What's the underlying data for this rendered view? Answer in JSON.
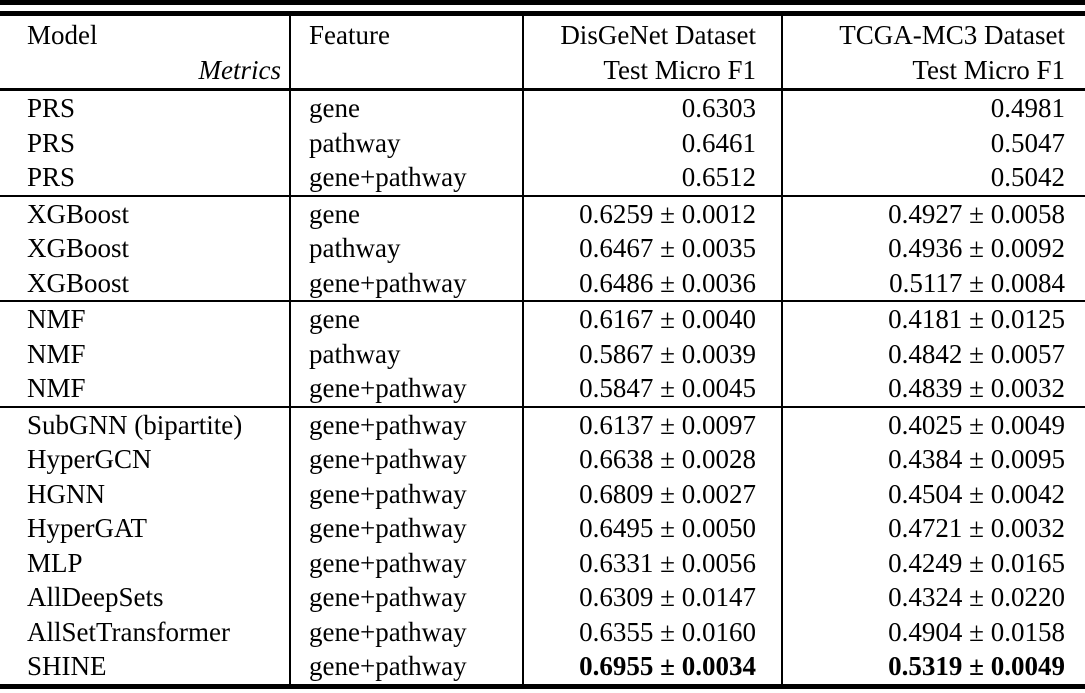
{
  "table": {
    "header": {
      "model_label": "Model",
      "metrics_label": "Metrics",
      "feature_label": "Feature",
      "col3_line1": "DisGeNet Dataset",
      "col3_line2": "Test Micro F1",
      "col4_line1": "TCGA-MC3 Dataset",
      "col4_line2": "Test Micro F1"
    },
    "rows": [
      {
        "model": "PRS",
        "feature": "gene",
        "disgenet": "0.6303",
        "tcga": "0.4981"
      },
      {
        "model": "PRS",
        "feature": "pathway",
        "disgenet": "0.6461",
        "tcga": "0.5047"
      },
      {
        "model": "PRS",
        "feature": "gene+pathway",
        "disgenet": "0.6512",
        "tcga": "0.5042"
      },
      {
        "model": "XGBoost",
        "feature": "gene",
        "disgenet": "0.6259 ± 0.0012",
        "tcga": "0.4927 ± 0.0058"
      },
      {
        "model": "XGBoost",
        "feature": "pathway",
        "disgenet": "0.6467 ± 0.0035",
        "tcga": "0.4936 ± 0.0092"
      },
      {
        "model": "XGBoost",
        "feature": "gene+pathway",
        "disgenet": "0.6486 ± 0.0036",
        "tcga": "0.5117 ± 0.0084"
      },
      {
        "model": "NMF",
        "feature": "gene",
        "disgenet": "0.6167 ± 0.0040",
        "tcga": "0.4181 ± 0.0125"
      },
      {
        "model": "NMF",
        "feature": "pathway",
        "disgenet": "0.5867 ± 0.0039",
        "tcga": "0.4842 ± 0.0057"
      },
      {
        "model": "NMF",
        "feature": "gene+pathway",
        "disgenet": "0.5847 ± 0.0045",
        "tcga": "0.4839 ± 0.0032"
      },
      {
        "model": "SubGNN (bipartite)",
        "feature": "gene+pathway",
        "disgenet": "0.6137 ± 0.0097",
        "tcga": "0.4025 ± 0.0049"
      },
      {
        "model": "HyperGCN",
        "feature": "gene+pathway",
        "disgenet": "0.6638 ± 0.0028",
        "tcga": "0.4384 ± 0.0095"
      },
      {
        "model": "HGNN",
        "feature": "gene+pathway",
        "disgenet": "0.6809 ± 0.0027",
        "tcga": "0.4504 ± 0.0042"
      },
      {
        "model": "HyperGAT",
        "feature": "gene+pathway",
        "disgenet": "0.6495 ± 0.0050",
        "tcga": "0.4721 ± 0.0032"
      },
      {
        "model": "MLP",
        "feature": "gene+pathway",
        "disgenet": "0.6331 ± 0.0056",
        "tcga": "0.4249 ± 0.0165"
      },
      {
        "model": "AllDeepSets",
        "feature": "gene+pathway",
        "disgenet": "0.6309 ± 0.0147",
        "tcga": "0.4324 ± 0.0220"
      },
      {
        "model": "AllSetTransformer",
        "feature": "gene+pathway",
        "disgenet": "0.6355 ± 0.0160",
        "tcga": "0.4904 ± 0.0158"
      },
      {
        "model": "SHINE",
        "feature": "gene+pathway",
        "disgenet": "0.6955 ± 0.0034",
        "tcga": "0.5319 ± 0.0049",
        "best": true
      }
    ]
  }
}
